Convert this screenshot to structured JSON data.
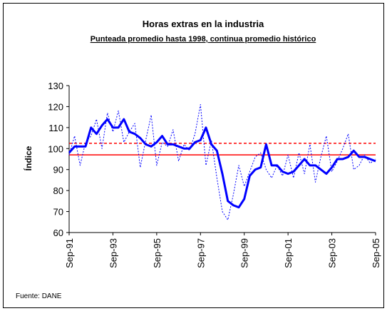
{
  "chart_data": {
    "type": "line",
    "title": "Horas extras en la industria",
    "subtitle": "Punteada promedio hasta 1998, continua promedio histórico",
    "y_label": "Índice",
    "source": "Fuente: DANE",
    "categories": [
      "Sep-91",
      null,
      null,
      null,
      null,
      null,
      null,
      null,
      "Sep-93",
      null,
      null,
      null,
      null,
      null,
      null,
      null,
      "Sep-95",
      null,
      null,
      null,
      null,
      null,
      null,
      null,
      "Sep-97",
      null,
      null,
      null,
      null,
      null,
      null,
      null,
      "Sep-99",
      null,
      null,
      null,
      null,
      null,
      null,
      null,
      "Sep-01",
      null,
      null,
      null,
      null,
      null,
      null,
      null,
      "Sep-03",
      null,
      null,
      null,
      null,
      null,
      null,
      null,
      "Sep-05"
    ],
    "series": [
      {
        "color": "#0000ff",
        "style": "dotted",
        "values": [
          97,
          106,
          92,
          103,
          106,
          114,
          100,
          117,
          108,
          118,
          103,
          108,
          112,
          91,
          104,
          116,
          92,
          103,
          101,
          109,
          94,
          102,
          99,
          107,
          121,
          92,
          104,
          86,
          70,
          66,
          78,
          92,
          82,
          89,
          96,
          98,
          90,
          86,
          92,
          87,
          97,
          86,
          98,
          88,
          102,
          84,
          96,
          106,
          89,
          94,
          100,
          107,
          90,
          92,
          97,
          93,
          95
        ]
      },
      {
        "color": "#0000ff",
        "style": "solid",
        "values": [
          98,
          101,
          101,
          101,
          110,
          107,
          111,
          114,
          110,
          110,
          114,
          108,
          107,
          105,
          102,
          101,
          103,
          106,
          102,
          102,
          101,
          100,
          100,
          103,
          104,
          110,
          102,
          99,
          88,
          75,
          73,
          72,
          76,
          87,
          90,
          91,
          102,
          92,
          92,
          89,
          88,
          89,
          92,
          95,
          92,
          92,
          90,
          88,
          91,
          95,
          95,
          96,
          99,
          96,
          96,
          95,
          94
        ]
      }
    ],
    "hlines": [
      {
        "value": 102.5,
        "color": "#ff0000",
        "style": "dashed"
      },
      {
        "value": 97,
        "color": "#ff0000",
        "style": "solid"
      }
    ],
    "ylim": [
      60,
      130
    ],
    "yticks": [
      60,
      70,
      80,
      90,
      100,
      110,
      120,
      130
    ],
    "grid": false
  }
}
